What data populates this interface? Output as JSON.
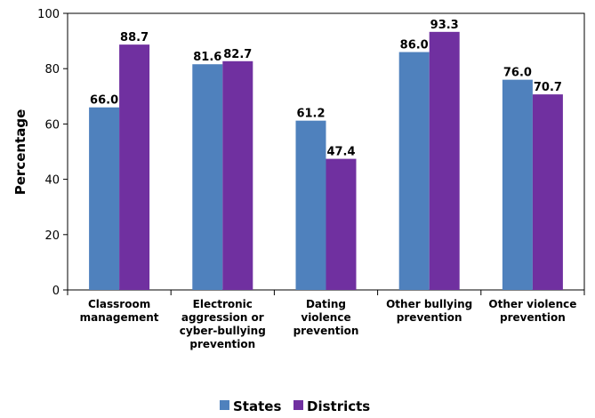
{
  "chart_data": {
    "type": "bar",
    "title": "",
    "xlabel": "",
    "ylabel": "Percentage",
    "ylim": [
      0,
      100
    ],
    "yticks": [
      0,
      20,
      40,
      60,
      80,
      100
    ],
    "grid": false,
    "legend_position": "bottom",
    "categories": [
      [
        "Classroom",
        "management"
      ],
      [
        "Electronic",
        "aggression or",
        "cyber-bullying",
        "prevention"
      ],
      [
        "Dating",
        "violence",
        "prevention"
      ],
      [
        "Other bullying",
        "prevention"
      ],
      [
        "Other violence",
        "prevention"
      ]
    ],
    "series": [
      {
        "name": "States",
        "color": "#4F81BD",
        "values": [
          66.0,
          81.6,
          61.2,
          86.0,
          76.0
        ]
      },
      {
        "name": "Districts",
        "color": "#7030A0",
        "values": [
          88.7,
          82.7,
          47.4,
          93.3,
          70.7
        ]
      }
    ]
  }
}
